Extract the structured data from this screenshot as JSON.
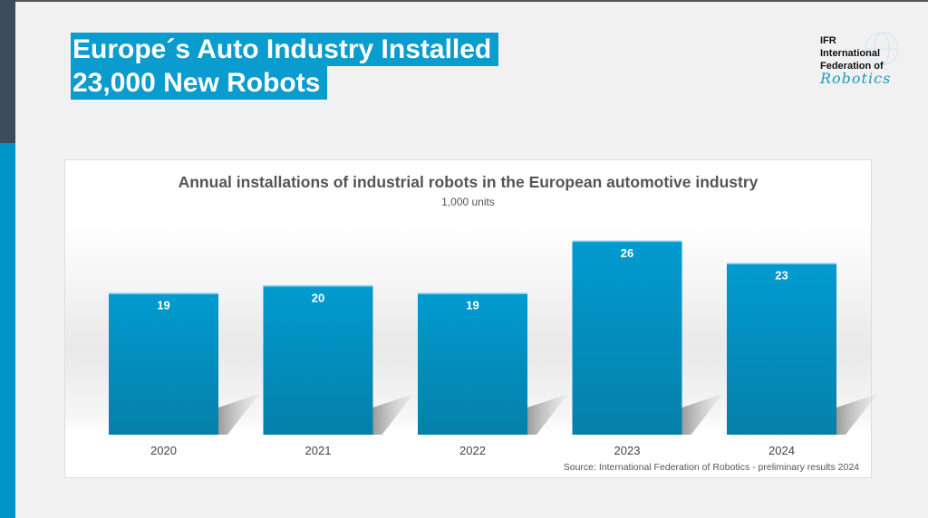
{
  "slide": {
    "title_line1": "Europe´s Auto Industry Installed",
    "title_line2": "23,000 New Robots",
    "logo": {
      "line1": "IFR",
      "line2": "International",
      "line3": "Federation of",
      "line4": "Robotics"
    },
    "accent_color": "#0095c8"
  },
  "chart_data": {
    "type": "bar",
    "title": "Annual installations of industrial robots in the European automotive industry",
    "subtitle": "1,000 units",
    "categories": [
      "2020",
      "2021",
      "2022",
      "2023",
      "2024"
    ],
    "values": [
      19,
      20,
      19,
      26,
      23
    ],
    "data_labels": [
      "19",
      "20",
      "19",
      "26",
      "23"
    ],
    "ylim": [
      0,
      30
    ],
    "grid": false,
    "bar_color": "#0096c8",
    "source": "Source: International Federation of Robotics - preliminary results 2024"
  }
}
